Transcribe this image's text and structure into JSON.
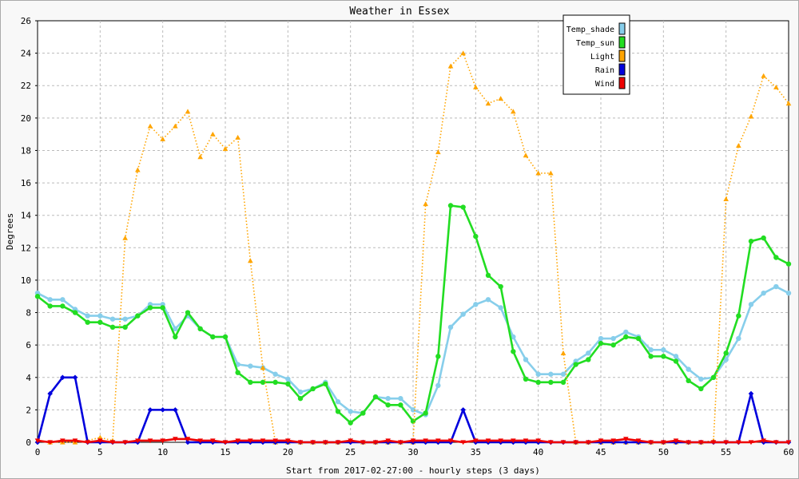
{
  "chart_data": {
    "type": "line",
    "title": "Weather in Essex",
    "xlabel": "Start from 2017-02-27:00 - hourly steps (3 days)",
    "ylabel": "Degrees",
    "xlim": [
      0,
      60
    ],
    "ylim": [
      0,
      26
    ],
    "xticks": [
      0,
      5,
      10,
      15,
      20,
      25,
      30,
      35,
      40,
      45,
      50,
      55,
      60
    ],
    "yticks": [
      0,
      2,
      4,
      6,
      8,
      10,
      12,
      14,
      16,
      18,
      20,
      22,
      24,
      26
    ],
    "grid": true,
    "legend_position": "top-right",
    "x": [
      0,
      1,
      2,
      3,
      4,
      5,
      6,
      7,
      8,
      9,
      10,
      11,
      12,
      13,
      14,
      15,
      16,
      17,
      18,
      19,
      20,
      21,
      22,
      23,
      24,
      25,
      26,
      27,
      28,
      29,
      30,
      31,
      32,
      33,
      34,
      35,
      36,
      37,
      38,
      39,
      40,
      41,
      42,
      43,
      44,
      45,
      46,
      47,
      48,
      49,
      50,
      51,
      52,
      53,
      54,
      55,
      56,
      57,
      58,
      59,
      60
    ],
    "series": [
      {
        "name": "Temp_shade",
        "color": "#87ceeb",
        "marker": "circle",
        "dash": "solid",
        "values": [
          9.2,
          8.8,
          8.8,
          8.2,
          7.8,
          7.8,
          7.6,
          7.6,
          7.8,
          8.5,
          8.5,
          7.0,
          7.8,
          7.0,
          6.5,
          6.5,
          4.8,
          4.7,
          4.6,
          4.2,
          3.9,
          3.1,
          3.3,
          3.7,
          2.5,
          1.9,
          1.8,
          2.8,
          2.7,
          2.7,
          2.0,
          1.7,
          3.5,
          7.1,
          7.9,
          8.5,
          8.8,
          8.3,
          6.5,
          5.1,
          4.2,
          4.2,
          4.2,
          5.0,
          5.5,
          6.4,
          6.4,
          6.8,
          6.5,
          5.7,
          5.7,
          5.3,
          4.5,
          3.9,
          4.0,
          5.1,
          6.4,
          8.5,
          9.2,
          9.6,
          9.2
        ]
      },
      {
        "name": "Temp_sun",
        "color": "#22dd22",
        "marker": "circle",
        "dash": "solid",
        "values": [
          9.0,
          8.4,
          8.4,
          8.0,
          7.4,
          7.4,
          7.1,
          7.1,
          7.8,
          8.3,
          8.3,
          6.5,
          8.0,
          7.0,
          6.5,
          6.5,
          4.3,
          3.7,
          3.7,
          3.7,
          3.6,
          2.7,
          3.3,
          3.6,
          1.9,
          1.2,
          1.8,
          2.8,
          2.3,
          2.3,
          1.3,
          1.8,
          5.3,
          14.6,
          14.5,
          12.7,
          10.3,
          9.6,
          5.6,
          3.9,
          3.7,
          3.7,
          3.7,
          4.8,
          5.1,
          6.1,
          6.0,
          6.5,
          6.4,
          5.3,
          5.3,
          5.0,
          3.8,
          3.3,
          4.0,
          5.5,
          7.8,
          12.4,
          12.6,
          11.4,
          11.0
        ]
      },
      {
        "name": "Light",
        "color": "#ffa500",
        "marker": "triangle",
        "dash": "dotted",
        "values": [
          0.1,
          0,
          0,
          0,
          0.1,
          0.3,
          0.1,
          12.6,
          16.8,
          19.5,
          18.7,
          19.5,
          20.4,
          17.6,
          19.0,
          18.1,
          18.8,
          11.2,
          4.6,
          0,
          0,
          0,
          0,
          0,
          0,
          0.1,
          0,
          0,
          0,
          0,
          0,
          14.7,
          17.9,
          23.2,
          24.0,
          21.9,
          20.9,
          21.2,
          20.4,
          17.7,
          16.6,
          16.6,
          5.5,
          0,
          0,
          0,
          0,
          0,
          0,
          0,
          0,
          0,
          0,
          0,
          0.1,
          15.0,
          18.3,
          20.1,
          22.6,
          21.9,
          20.9
        ]
      },
      {
        "name": "Rain",
        "color": "#0000dd",
        "marker": "diamond",
        "dash": "solid",
        "values": [
          0,
          3.0,
          4.0,
          4.0,
          0,
          0,
          0,
          0,
          0,
          2.0,
          2.0,
          2.0,
          0,
          0,
          0,
          0,
          0,
          0,
          0,
          0,
          0,
          0,
          0,
          0,
          0,
          0,
          0,
          0,
          0,
          0,
          0,
          0,
          0,
          0,
          2.0,
          0,
          0,
          0,
          0,
          0,
          0,
          0,
          0,
          0,
          0,
          0,
          0,
          0,
          0,
          0,
          0,
          0,
          0,
          0,
          0,
          0,
          0,
          3.0,
          0,
          0,
          0
        ]
      },
      {
        "name": "Wind",
        "color": "#ee0000",
        "marker": "triangle-down",
        "dash": "solid",
        "values": [
          0.1,
          0,
          0.1,
          0.1,
          0,
          0.1,
          0,
          0,
          0.1,
          0.1,
          0.1,
          0.2,
          0.2,
          0.1,
          0.1,
          0,
          0.1,
          0.1,
          0.1,
          0.1,
          0.1,
          0,
          0,
          0,
          0,
          0.1,
          0,
          0,
          0.1,
          0,
          0.1,
          0.1,
          0.1,
          0.1,
          0,
          0.1,
          0.1,
          0.1,
          0.1,
          0.1,
          0.1,
          0,
          0,
          0,
          0,
          0.1,
          0.1,
          0.2,
          0.1,
          0,
          0,
          0.1,
          0,
          0,
          0,
          0,
          0,
          0,
          0.1,
          0,
          0
        ]
      }
    ]
  }
}
